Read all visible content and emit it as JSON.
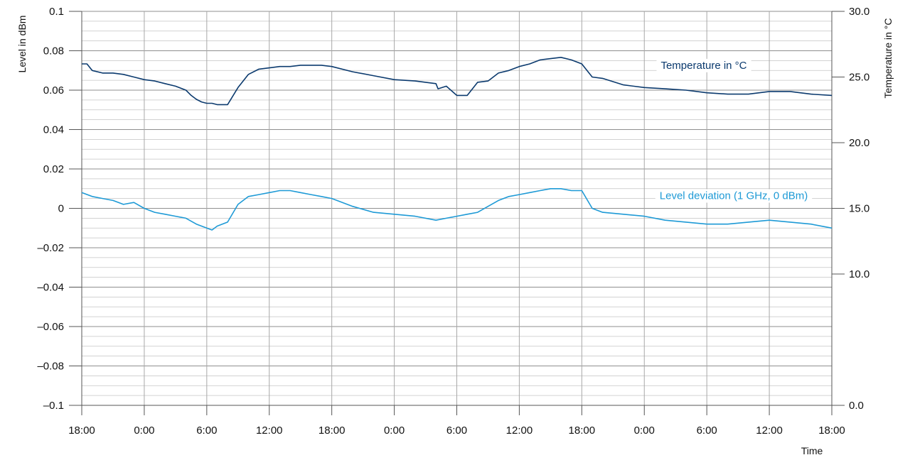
{
  "chart_data": {
    "type": "line",
    "xlabel": "Time",
    "ylabel_left": "Level in dBm",
    "ylabel_right": "Temperature in °C",
    "x_ticks": [
      "18:00",
      "0:00",
      "6:00",
      "12:00",
      "18:00",
      "0:00",
      "6:00",
      "12:00",
      "18:00",
      "0:00",
      "6:00",
      "12:00",
      "18:00"
    ],
    "x_range_hours": [
      0,
      72
    ],
    "y_left": {
      "range": [
        -0.1,
        0.1
      ],
      "ticks": [
        0.1,
        0.08,
        0.06,
        0.04,
        0.02,
        0,
        -0.02,
        -0.04,
        -0.06,
        -0.08,
        -0.1
      ],
      "tick_labels": [
        "0.1",
        "0.08",
        "0.06",
        "0.04",
        "0.02",
        "0",
        "–0.02",
        "–0.04",
        "–0.06",
        "–0.08",
        "–0.1"
      ]
    },
    "y_right": {
      "range": [
        0,
        30
      ],
      "ticks": [
        30,
        25,
        20,
        15,
        10,
        0
      ],
      "tick_labels": [
        "30.0",
        "25.0",
        "20.0",
        "15.0",
        "10.0",
        "0.0"
      ]
    },
    "grid": true,
    "series": [
      {
        "name": "Temperature in °C",
        "axis": "right",
        "color": "#0b3a6e",
        "x_hours": [
          0,
          0.5,
          1,
          2,
          3,
          4,
          5,
          6,
          7,
          8,
          9,
          10,
          10.5,
          11,
          11.5,
          12,
          12.5,
          13,
          14,
          15,
          16,
          17,
          18,
          19,
          20,
          21,
          22,
          23,
          24,
          26,
          28,
          30,
          32,
          33,
          34,
          34.2,
          35,
          36,
          37,
          38,
          39,
          40,
          41,
          42,
          43,
          44,
          45,
          46,
          47,
          48,
          49,
          50,
          52,
          54,
          56,
          58,
          60,
          62,
          64,
          66,
          68,
          70,
          72
        ],
        "values": [
          26.0,
          26.0,
          25.5,
          25.3,
          25.3,
          25.2,
          25.0,
          24.8,
          24.7,
          24.5,
          24.3,
          24.0,
          23.6,
          23.3,
          23.1,
          23.0,
          23.0,
          22.9,
          22.9,
          24.2,
          25.2,
          25.6,
          25.7,
          25.8,
          25.8,
          25.9,
          25.9,
          25.9,
          25.8,
          25.4,
          25.1,
          24.8,
          24.7,
          24.6,
          24.5,
          24.1,
          24.3,
          23.6,
          23.6,
          24.6,
          24.7,
          25.3,
          25.5,
          25.8,
          26.0,
          26.3,
          26.4,
          26.5,
          26.3,
          26.0,
          25.0,
          24.9,
          24.4,
          24.2,
          24.1,
          24.0,
          23.8,
          23.7,
          23.7,
          23.9,
          23.9,
          23.7,
          23.6
        ]
      },
      {
        "name": "Level deviation (1 GHz, 0 dBm)",
        "axis": "left",
        "color": "#1e9ad6",
        "x_hours": [
          0,
          1,
          2,
          3,
          4,
          5,
          6,
          7,
          8,
          9,
          10,
          11,
          12,
          12.5,
          13,
          14,
          15,
          16,
          17,
          18,
          19,
          20,
          21,
          22,
          23,
          24,
          26,
          28,
          30,
          32,
          34,
          35,
          36,
          37,
          38,
          39,
          40,
          41,
          42,
          43,
          44,
          45,
          46,
          47,
          48,
          49,
          50,
          52,
          54,
          56,
          58,
          60,
          62,
          64,
          66,
          68,
          70,
          72
        ],
        "values": [
          0.008,
          0.006,
          0.005,
          0.004,
          0.002,
          0.003,
          0.0,
          -0.002,
          -0.003,
          -0.004,
          -0.005,
          -0.008,
          -0.01,
          -0.011,
          -0.009,
          -0.007,
          0.002,
          0.006,
          0.007,
          0.008,
          0.009,
          0.009,
          0.008,
          0.007,
          0.006,
          0.005,
          0.001,
          -0.002,
          -0.003,
          -0.004,
          -0.006,
          -0.005,
          -0.004,
          -0.003,
          -0.002,
          0.001,
          0.004,
          0.006,
          0.007,
          0.008,
          0.009,
          0.01,
          0.01,
          0.009,
          0.009,
          0.0,
          -0.002,
          -0.003,
          -0.004,
          -0.006,
          -0.007,
          -0.008,
          -0.008,
          -0.007,
          -0.006,
          -0.007,
          -0.008,
          -0.01
        ]
      }
    ]
  }
}
